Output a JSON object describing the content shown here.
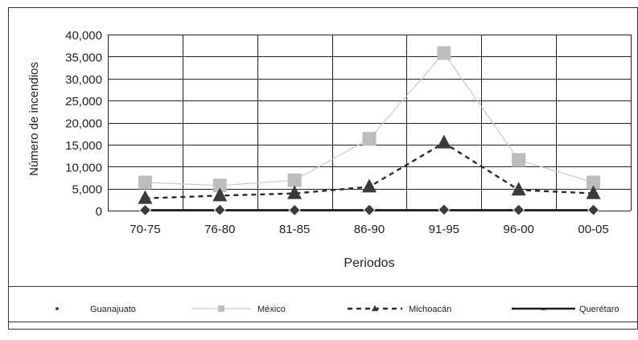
{
  "chart_data": {
    "type": "line",
    "title": "",
    "xlabel": "Periodos",
    "ylabel": "Número de incendios",
    "categories": [
      "70-75",
      "76-80",
      "81-85",
      "86-90",
      "91-95",
      "96-00",
      "00-05"
    ],
    "ylim": [
      0,
      40000
    ],
    "yticks": [
      0,
      5000,
      10000,
      15000,
      20000,
      25000,
      30000,
      35000,
      40000
    ],
    "ytick_labels": [
      "0",
      "5,000",
      "10,000",
      "15,000",
      "20,000",
      "25,000",
      "30,000",
      "35,000",
      "40,000"
    ],
    "grid": true,
    "legend_position": "bottom",
    "series": [
      {
        "name": "Guanajuato",
        "values": [
          100,
          150,
          100,
          150,
          200,
          150,
          150
        ],
        "marker": "diamond",
        "line": "none",
        "color": "#444444"
      },
      {
        "name": "México",
        "values": [
          6400,
          5700,
          6900,
          16300,
          35800,
          11500,
          6400
        ],
        "marker": "square",
        "line": "solid-light",
        "color": "#c0c0c0"
      },
      {
        "name": "Michoacán",
        "values": [
          2800,
          3400,
          3900,
          5400,
          15400,
          4700,
          3900
        ],
        "marker": "triangle",
        "line": "dashed",
        "color": "#444444"
      },
      {
        "name": "Querétaro",
        "values": [
          100,
          100,
          100,
          100,
          100,
          100,
          100
        ],
        "marker": "dash",
        "line": "solid-heavy",
        "color": "#333333"
      }
    ]
  }
}
